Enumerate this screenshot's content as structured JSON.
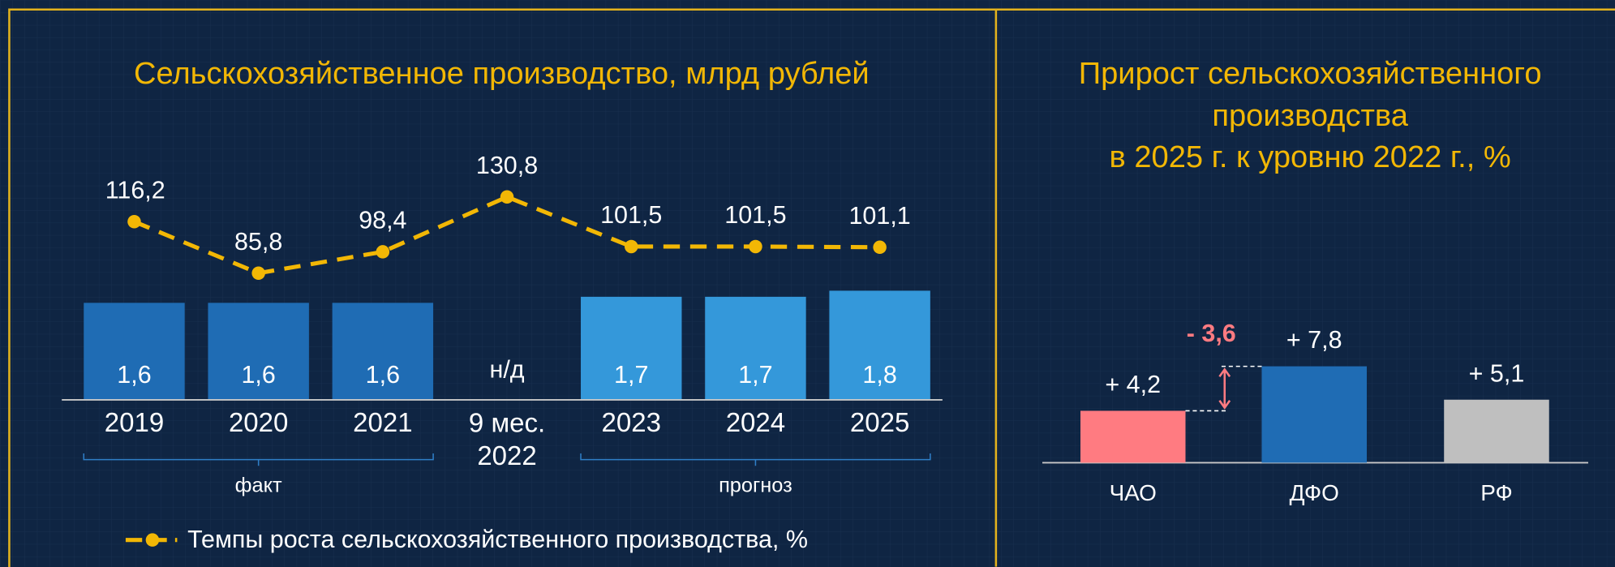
{
  "chart_data": [
    {
      "type": "bar-line",
      "title": "Сельскохозяйственное производство, млрд рублей",
      "categories": [
        "2019",
        "2020",
        "2021",
        "9 мес. 2022",
        "2023",
        "2024",
        "2025"
      ],
      "bars": {
        "values": [
          1.6,
          1.6,
          1.6,
          null,
          1.7,
          1.7,
          1.8
        ],
        "value_labels": [
          "1,6",
          "1,6",
          "1,6",
          "н/д",
          "1,7",
          "1,7",
          "1,8"
        ],
        "colors": [
          "#1f6cb4",
          "#1f6cb4",
          "#1f6cb4",
          null,
          "#3498da",
          "#3498da",
          "#3498da"
        ]
      },
      "ylim": [
        0,
        1.8
      ],
      "series": [
        {
          "name": "Темпы роста сельскохозяйственного производства, %",
          "color": "#f2b705",
          "axis": "y2",
          "values": [
            116.2,
            85.8,
            98.4,
            130.8,
            101.5,
            101.5,
            101.1
          ],
          "value_labels": [
            "116,2",
            "85,8",
            "98,4",
            "130,8",
            "101,5",
            "101,5",
            "101,1"
          ]
        }
      ],
      "y2lim": [
        60,
        140
      ],
      "groups": [
        {
          "label": "факт",
          "span": [
            0,
            2
          ]
        },
        {
          "label": "прогноз",
          "span": [
            4,
            6
          ]
        }
      ],
      "legend": "bottom"
    },
    {
      "type": "bar",
      "title": [
        "Прирост сельскохозяйственного",
        "производства",
        "в 2025 г. к уровню 2022 г., %"
      ],
      "categories": [
        "ЧАО",
        "ДФО",
        "РФ"
      ],
      "values": [
        4.2,
        7.8,
        5.1
      ],
      "value_labels": [
        "+ 4,2",
        "+ 7,8",
        "+ 5,1"
      ],
      "colors": [
        "#ff7b81",
        "#1f6cb4",
        "#bfbfbf"
      ],
      "ylim": [
        0,
        8
      ],
      "annotations": [
        "- 3,6"
      ]
    }
  ]
}
